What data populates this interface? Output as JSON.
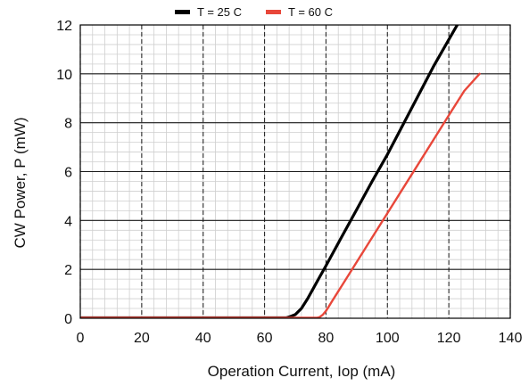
{
  "chart_data": {
    "type": "line",
    "title": "",
    "xlabel": "Operation Current, Iop (mA)",
    "ylabel": "CW Power, P (mW)",
    "xlim": [
      0,
      140
    ],
    "ylim": [
      0,
      12
    ],
    "x_ticks": [
      0,
      20,
      40,
      60,
      80,
      100,
      120,
      140
    ],
    "y_ticks": [
      0,
      2,
      4,
      6,
      8,
      10,
      12
    ],
    "x_minor_step": 4,
    "y_minor_step": 0.4,
    "grid": true,
    "legend_position": "top",
    "series": [
      {
        "name": "T = 25 C",
        "color": "#000000",
        "x": [
          0,
          67,
          68,
          70,
          72,
          74,
          76,
          78,
          80,
          85,
          90,
          95,
          100,
          105,
          110,
          115,
          120,
          125,
          130
        ],
        "y": [
          0.02,
          0.02,
          0.05,
          0.15,
          0.4,
          0.8,
          1.25,
          1.7,
          2.15,
          3.3,
          4.45,
          5.6,
          6.7,
          7.9,
          9.1,
          10.3,
          11.4,
          12.5,
          13.5
        ]
      },
      {
        "name": "T = 60 C",
        "color": "#e8473a",
        "x": [
          0,
          77,
          78,
          79,
          80,
          81,
          82,
          84,
          86,
          90,
          95,
          100,
          105,
          110,
          115,
          120,
          125,
          130
        ],
        "y": [
          0.02,
          0.02,
          0.05,
          0.15,
          0.3,
          0.5,
          0.7,
          1.1,
          1.5,
          2.3,
          3.3,
          4.3,
          5.3,
          6.3,
          7.3,
          8.3,
          9.3,
          10.0
        ]
      }
    ]
  }
}
